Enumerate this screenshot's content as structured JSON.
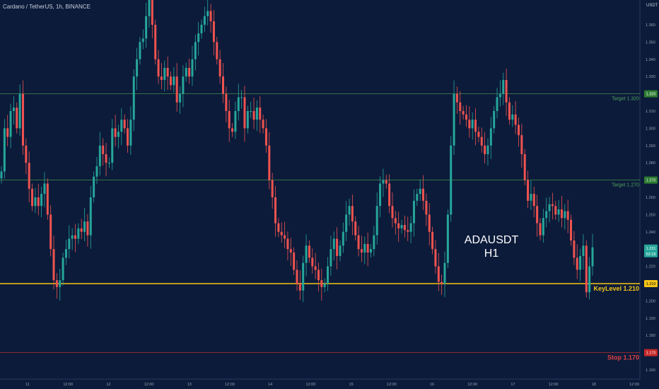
{
  "header": {
    "symbol_title": "Cardano / TetherUS, 1h, BINANCE",
    "axis_unit": "USDT"
  },
  "annotation": {
    "pair": "ADAUSDT",
    "timeframe": "H1"
  },
  "colors": {
    "background": "#0c1b3a",
    "up": "#26a69a",
    "down": "#ef5350",
    "target_line": "#3f8f4a",
    "key_level": "#f5c518",
    "stop_line": "#b22a2a",
    "axis_text": "#9aa3b5"
  },
  "price_axis": {
    "ticks": [
      "1.360",
      "1.350",
      "1.340",
      "1.330",
      "1.320",
      "1.310",
      "1.300",
      "1.290",
      "1.280",
      "1.270",
      "1.260",
      "1.250",
      "1.240",
      "1.230",
      "1.220",
      "1.210",
      "1.200",
      "1.190",
      "1.180",
      "1.170",
      "1.160"
    ],
    "current_price": "1.231",
    "countdown": "52:18"
  },
  "time_axis": {
    "ticks": [
      "11",
      "12:00",
      "12",
      "12:00",
      "13",
      "12:00",
      "14",
      "12:00",
      "15",
      "12:00",
      "16",
      "12:00",
      "17",
      "12:00",
      "18",
      "12:00"
    ]
  },
  "levels": [
    {
      "name": "target-1-320",
      "label": "Target 1.320",
      "badge": "1.320",
      "price": 1.32,
      "kind": "target"
    },
    {
      "name": "target-1-270",
      "label": "Target 1.270",
      "badge": "1.270",
      "price": 1.27,
      "kind": "target"
    },
    {
      "name": "key-level-1-210",
      "label": "KeyLevel 1.210",
      "badge": "1.210",
      "price": 1.21,
      "kind": "key"
    },
    {
      "name": "stop-1-170",
      "label": "Stop 1.170",
      "badge": "1.170",
      "price": 1.17,
      "kind": "stop"
    }
  ],
  "chart_data": {
    "type": "candlestick",
    "ylim": [
      1.154,
      1.375
    ],
    "candle_close": [
      1.275,
      1.3,
      1.295,
      1.31,
      1.312,
      1.3,
      1.32,
      1.29,
      1.28,
      1.265,
      1.255,
      1.26,
      1.255,
      1.262,
      1.268,
      1.25,
      1.23,
      1.212,
      1.208,
      1.212,
      1.225,
      1.23,
      1.236,
      1.238,
      1.236,
      1.242,
      1.24,
      1.246,
      1.238,
      1.26,
      1.272,
      1.278,
      1.29,
      1.285,
      1.28,
      1.28,
      1.3,
      1.295,
      1.298,
      1.305,
      1.3,
      1.29,
      1.305,
      1.33,
      1.34,
      1.35,
      1.352,
      1.365,
      1.375,
      1.36,
      1.34,
      1.33,
      1.328,
      1.335,
      1.33,
      1.325,
      1.33,
      1.315,
      1.32,
      1.33,
      1.335,
      1.33,
      1.34,
      1.35,
      1.355,
      1.36,
      1.365,
      1.368,
      1.362,
      1.35,
      1.34,
      1.33,
      1.32,
      1.31,
      1.3,
      1.298,
      1.31,
      1.318,
      1.318,
      1.3,
      1.31,
      1.31,
      1.305,
      1.312,
      1.305,
      1.3,
      1.29,
      1.27,
      1.26,
      1.245,
      1.24,
      1.238,
      1.236,
      1.23,
      1.228,
      1.218,
      1.21,
      1.206,
      1.222,
      1.232,
      1.225,
      1.22,
      1.218,
      1.212,
      1.208,
      1.21,
      1.22,
      1.23,
      1.236,
      1.226,
      1.232,
      1.24,
      1.25,
      1.255,
      1.246,
      1.238,
      1.23,
      1.228,
      1.233,
      1.228,
      1.23,
      1.238,
      1.255,
      1.268,
      1.27,
      1.268,
      1.255,
      1.248,
      1.245,
      1.242,
      1.244,
      1.241,
      1.24,
      1.245,
      1.258,
      1.262,
      1.265,
      1.258,
      1.25,
      1.24,
      1.23,
      1.22,
      1.211,
      1.21,
      1.222,
      1.25,
      1.29,
      1.32,
      1.315,
      1.31,
      1.308,
      1.305,
      1.3,
      1.305,
      1.298,
      1.295,
      1.29,
      1.285,
      1.29,
      1.3,
      1.31,
      1.318,
      1.32,
      1.328,
      1.315,
      1.305,
      1.308,
      1.302,
      1.296,
      1.285,
      1.27,
      1.258,
      1.262,
      1.255,
      1.245,
      1.238,
      1.248,
      1.252,
      1.256,
      1.255,
      1.25,
      1.253,
      1.248,
      1.252,
      1.247,
      1.235,
      1.225,
      1.218,
      1.226,
      1.232,
      1.205,
      1.22,
      1.231
    ]
  }
}
